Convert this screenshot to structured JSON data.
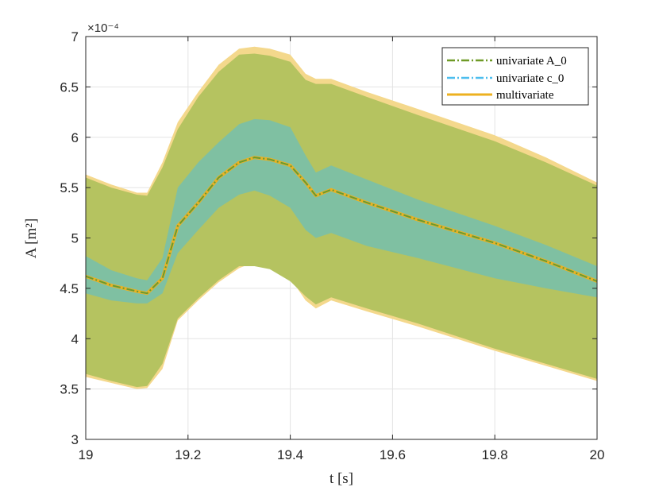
{
  "chart_data": {
    "type": "area",
    "xlabel": "t [s]",
    "ylabel": "A [m²]",
    "y_exponent_label": "×10⁻⁴",
    "y_scale": 0.0001,
    "xlim": [
      19,
      20
    ],
    "ylim": [
      3,
      7
    ],
    "xticks": [
      19,
      19.2,
      19.4,
      19.6,
      19.8,
      20
    ],
    "xtick_labels": [
      "19",
      "19.2",
      "19.4",
      "19.6",
      "19.8",
      "20"
    ],
    "yticks": [
      3,
      3.5,
      4,
      4.5,
      5,
      5.5,
      6,
      6.5,
      7
    ],
    "ytick_labels": [
      "3",
      "3.5",
      "4",
      "4.5",
      "5",
      "5.5",
      "6",
      "6.5",
      "7"
    ],
    "grid": true,
    "legend_position": "top-right",
    "x": [
      19.0,
      19.05,
      19.1,
      19.12,
      19.15,
      19.18,
      19.22,
      19.26,
      19.3,
      19.33,
      19.36,
      19.4,
      19.43,
      19.45,
      19.48,
      19.55,
      19.65,
      19.8,
      19.9,
      20.0
    ],
    "series": [
      {
        "name": "univariate A_0",
        "style": "dash-dot",
        "color": "#6f9a27",
        "mean": [
          4.62,
          4.53,
          4.47,
          4.45,
          4.6,
          5.12,
          5.35,
          5.6,
          5.75,
          5.8,
          5.78,
          5.72,
          5.55,
          5.42,
          5.48,
          5.35,
          5.18,
          4.95,
          4.77,
          4.57
        ]
      },
      {
        "name": "univariate c_0",
        "style": "dash-dot",
        "color": "#4dbeee",
        "mean": [
          4.62,
          4.53,
          4.47,
          4.45,
          4.6,
          5.12,
          5.35,
          5.6,
          5.75,
          5.8,
          5.78,
          5.72,
          5.55,
          5.42,
          5.48,
          5.35,
          5.18,
          4.95,
          4.77,
          4.57
        ]
      },
      {
        "name": "multivariate",
        "style": "solid",
        "color": "#edb120",
        "mean": [
          4.62,
          4.53,
          4.47,
          4.45,
          4.6,
          5.12,
          5.35,
          5.6,
          5.75,
          5.8,
          5.78,
          5.72,
          5.55,
          5.42,
          5.48,
          5.35,
          5.18,
          4.95,
          4.77,
          4.57
        ]
      }
    ],
    "bands": [
      {
        "name": "multivariate band",
        "color": "#f4d88c",
        "upper": [
          5.63,
          5.53,
          5.45,
          5.45,
          5.75,
          6.15,
          6.45,
          6.72,
          6.88,
          6.9,
          6.88,
          6.82,
          6.63,
          6.58,
          6.58,
          6.45,
          6.28,
          6.02,
          5.8,
          5.55
        ],
        "lower": [
          3.62,
          3.56,
          3.5,
          3.51,
          3.7,
          4.18,
          4.38,
          4.56,
          4.7,
          4.76,
          4.72,
          4.6,
          4.38,
          4.3,
          4.38,
          4.27,
          4.12,
          3.88,
          3.73,
          3.58
        ]
      },
      {
        "name": "univariate A_0 band",
        "color": "#b5c360",
        "upper": [
          5.6,
          5.5,
          5.43,
          5.42,
          5.7,
          6.08,
          6.4,
          6.65,
          6.82,
          6.83,
          6.81,
          6.75,
          6.57,
          6.53,
          6.53,
          6.4,
          6.22,
          5.96,
          5.75,
          5.52
        ],
        "lower": [
          3.65,
          3.58,
          3.52,
          3.53,
          3.75,
          4.2,
          4.4,
          4.58,
          4.72,
          4.72,
          4.69,
          4.57,
          4.42,
          4.34,
          4.41,
          4.3,
          4.15,
          3.9,
          3.75,
          3.6
        ]
      },
      {
        "name": "univariate c_0 band",
        "color": "#7fc0a2",
        "upper": [
          4.82,
          4.68,
          4.6,
          4.58,
          4.8,
          5.5,
          5.75,
          5.95,
          6.13,
          6.18,
          6.17,
          6.1,
          5.82,
          5.65,
          5.72,
          5.58,
          5.38,
          5.12,
          4.93,
          4.72
        ],
        "lower": [
          4.45,
          4.38,
          4.35,
          4.35,
          4.45,
          4.85,
          5.08,
          5.3,
          5.43,
          5.47,
          5.42,
          5.3,
          5.08,
          5.0,
          5.05,
          4.92,
          4.8,
          4.6,
          4.5,
          4.41
        ]
      }
    ]
  }
}
